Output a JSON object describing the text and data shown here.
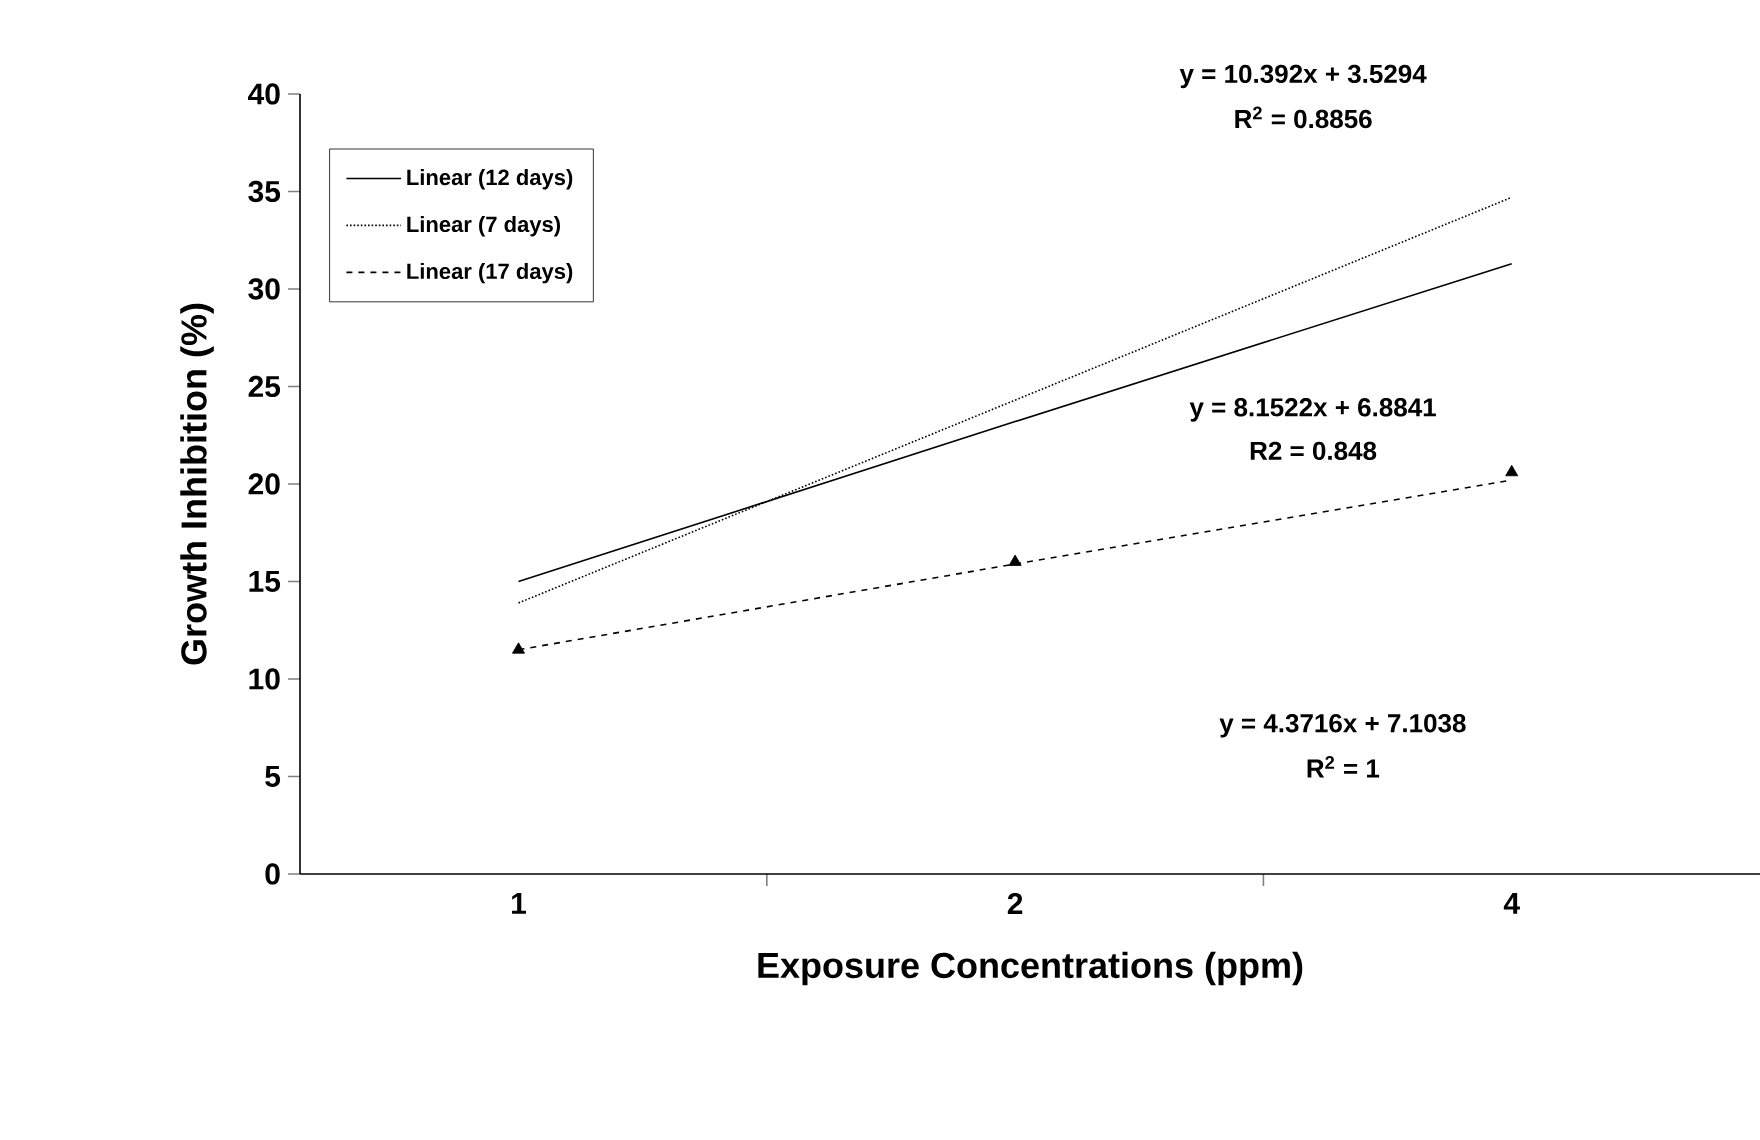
{
  "chart_data": {
    "type": "line",
    "xlabel": "Exposure Concentrations (ppm)",
    "ylabel": "Growth Inhibition (%)",
    "categories": [
      "1",
      "2",
      "4"
    ],
    "ylim": [
      0,
      40
    ],
    "yticks": [
      0,
      5,
      10,
      15,
      20,
      25,
      30,
      35,
      40
    ],
    "legend": "top left",
    "series": [
      {
        "name": "Linear (12 days)",
        "color": "#000000",
        "line_style": "solid",
        "values": [
          15.0,
          23.2,
          31.3
        ]
      },
      {
        "name": "Linear (7 days)",
        "color": "#000000",
        "line_style": "dotted",
        "values": [
          13.9,
          24.3,
          34.7
        ]
      },
      {
        "name": "Linear (17 days)",
        "color": "#000000",
        "line_style": "dashed",
        "values": [
          11.5,
          15.9,
          20.2
        ]
      },
      {
        "type": "scatter",
        "color": "#000000",
        "marker": "triangle",
        "values": [
          11.5,
          16.0,
          20.6
        ]
      }
    ],
    "annotations": [
      "y = 10.392x + 3.5294",
      "R$^{2}$ = 0.8856",
      "y = 8.1522x + 6.8841",
      "R2 = 0.848",
      "y = 4.3716x + 7.1038",
      "R$^{2}$ = 1"
    ]
  }
}
